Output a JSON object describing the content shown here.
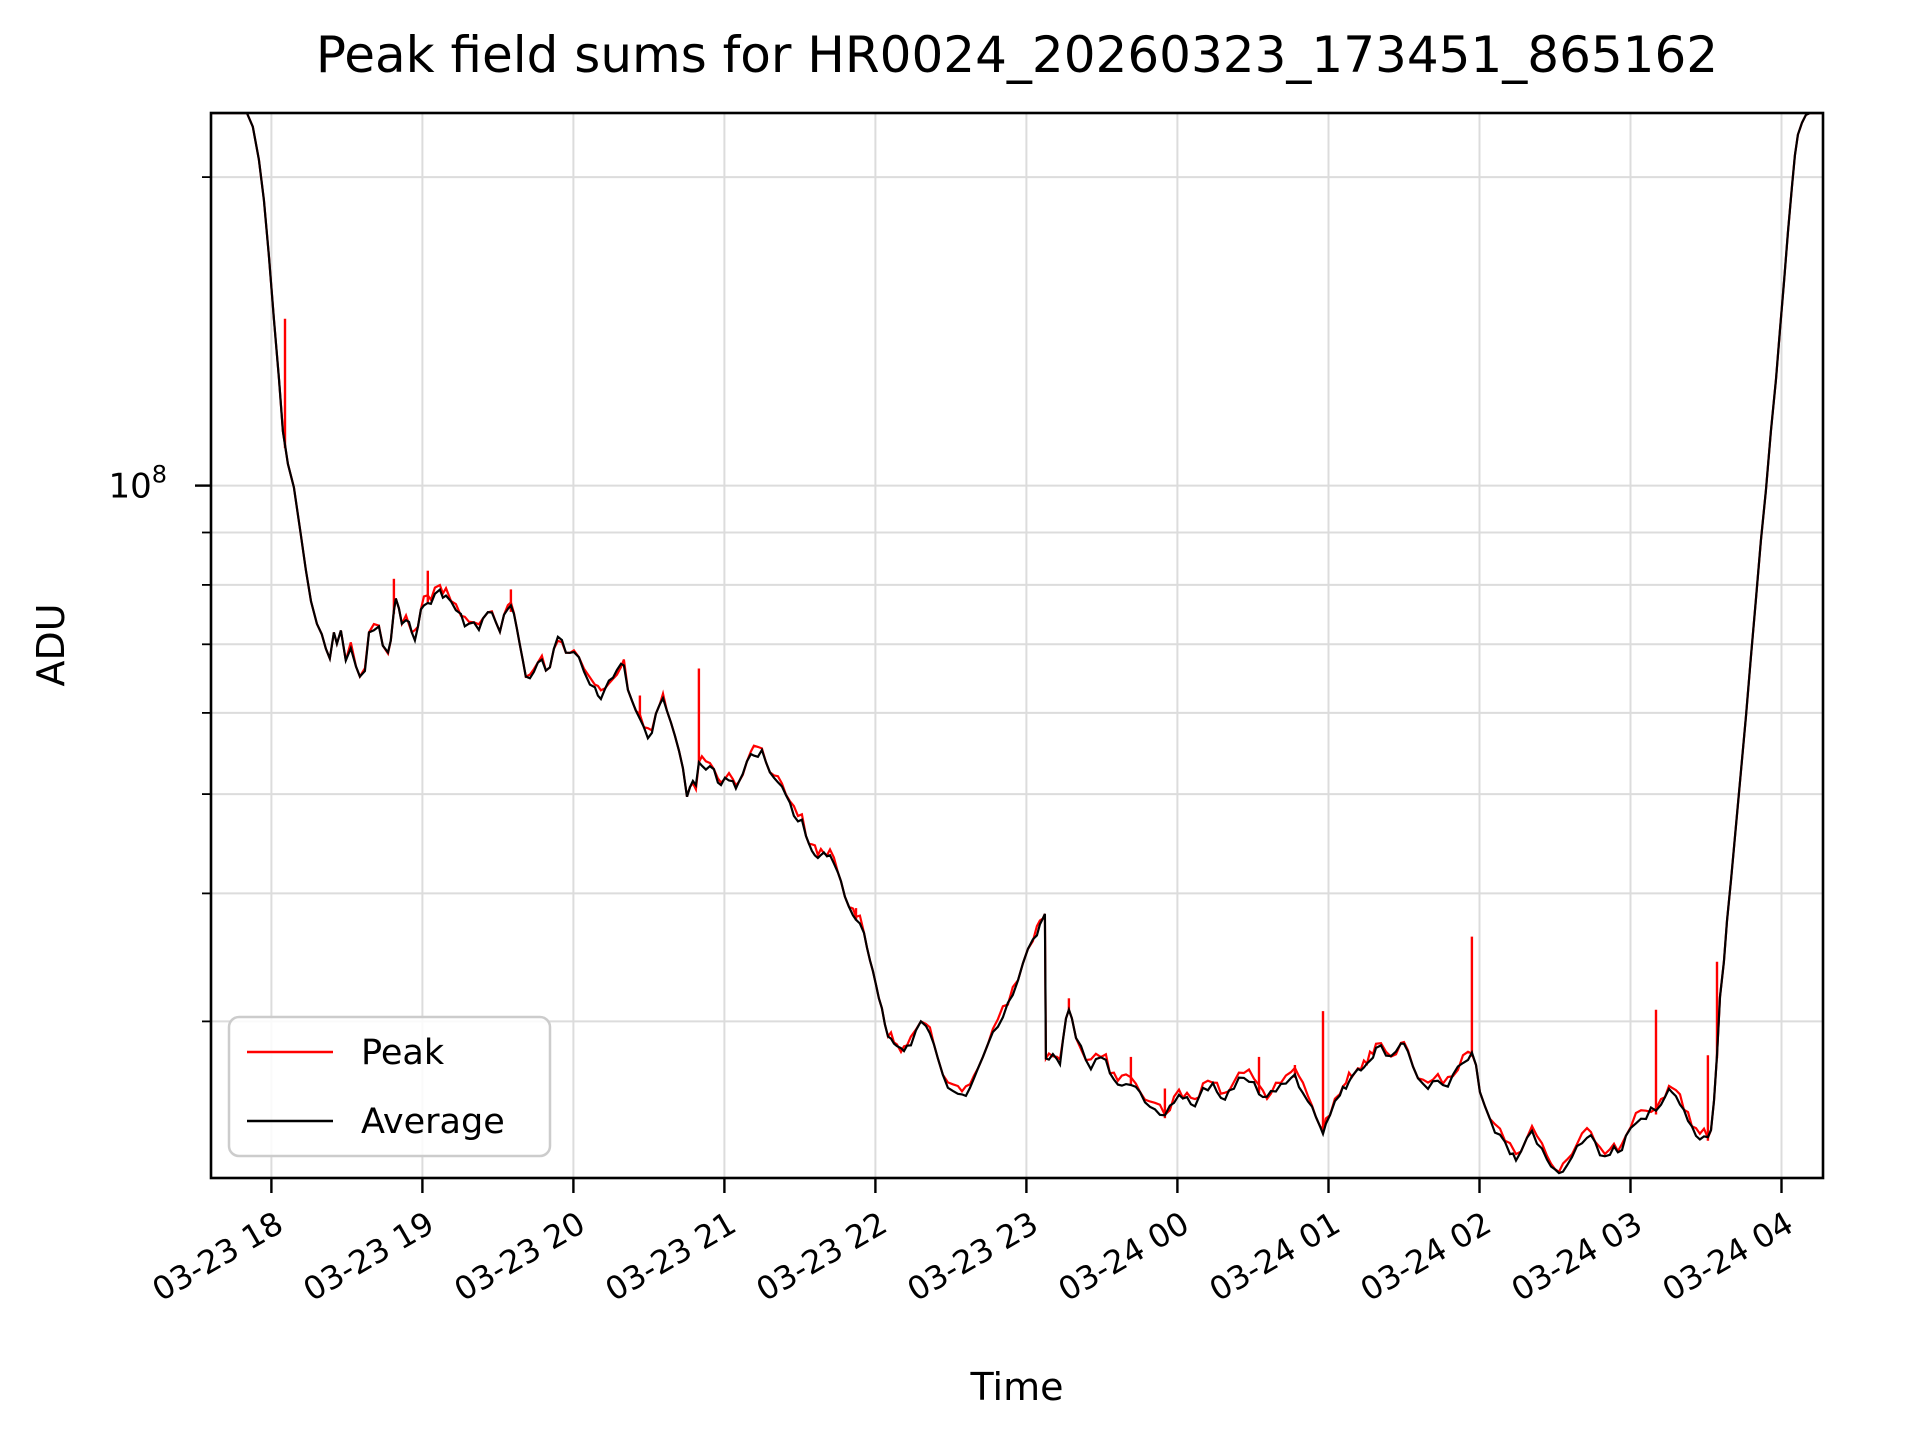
{
  "chart_data": {
    "type": "line",
    "title": "Peak field sums for HR0024_20260323_173451_865162",
    "xlabel": "Time",
    "ylabel": "ADU",
    "y_scale": "log",
    "grid": true,
    "xlim_hours": [
      17.6,
      28.275
    ],
    "ylim": [
      21100000,
      231000000
    ],
    "y_major_tick": {
      "value": 100000000,
      "mantissa": "10",
      "exponent": "8"
    },
    "y_minor_gridlines": [
      30000000,
      40000000,
      50000000,
      60000000,
      70000000,
      80000000,
      90000000,
      200000000
    ],
    "x_ticks": [
      {
        "t": 18,
        "label": "03-23 18"
      },
      {
        "t": 19,
        "label": "03-23 19"
      },
      {
        "t": 20,
        "label": "03-23 20"
      },
      {
        "t": 21,
        "label": "03-23 21"
      },
      {
        "t": 22,
        "label": "03-23 22"
      },
      {
        "t": 23,
        "label": "03-23 23"
      },
      {
        "t": 24,
        "label": "03-24 00"
      },
      {
        "t": 25,
        "label": "03-24 01"
      },
      {
        "t": 26,
        "label": "03-24 02"
      },
      {
        "t": 27,
        "label": "03-24 03"
      },
      {
        "t": 28,
        "label": "03-24 04"
      }
    ],
    "legend": {
      "position": "lower left",
      "entries": [
        {
          "label": "Peak",
          "color": "#ff0000"
        },
        {
          "label": "Average",
          "color": "#000000"
        }
      ]
    },
    "colors": {
      "peak": "#ff0000",
      "average": "#000000",
      "grid": "#dcdcdc",
      "spine": "#000000",
      "legend_border": "#cccccc"
    },
    "value_unit": "1e6 ADU",
    "average_points": [
      [
        17.599,
        231
      ],
      [
        17.838,
        231
      ],
      [
        17.877,
        224
      ],
      [
        17.917,
        208
      ],
      [
        17.95,
        190
      ],
      [
        17.983,
        168
      ],
      [
        18.017,
        145
      ],
      [
        18.05,
        127
      ],
      [
        18.076,
        113
      ],
      [
        18.109,
        105
      ],
      [
        18.149,
        99.6
      ],
      [
        18.195,
        89.6
      ],
      [
        18.228,
        82.8
      ],
      [
        18.262,
        77.1
      ],
      [
        18.301,
        73.3
      ],
      [
        18.334,
        71.6
      ],
      [
        18.361,
        69.3
      ],
      [
        18.387,
        67.8
      ],
      [
        18.414,
        71.9
      ],
      [
        18.434,
        70.1
      ],
      [
        18.46,
        72.2
      ],
      [
        18.493,
        67.5
      ],
      [
        18.526,
        69
      ],
      [
        18.56,
        66.6
      ],
      [
        18.586,
        65.1
      ],
      [
        18.619,
        66.3
      ],
      [
        18.646,
        71.9
      ],
      [
        18.679,
        72.8
      ],
      [
        18.712,
        72.2
      ],
      [
        18.738,
        69.8
      ],
      [
        18.772,
        68.2
      ],
      [
        18.791,
        70.6
      ],
      [
        18.811,
        75.5
      ],
      [
        18.824,
        77.6
      ],
      [
        18.844,
        75.9
      ],
      [
        18.864,
        73.3
      ],
      [
        18.891,
        73.8
      ],
      [
        18.911,
        73
      ],
      [
        18.93,
        71.9
      ],
      [
        18.95,
        70.9
      ],
      [
        18.97,
        72.8
      ],
      [
        18.99,
        75.7
      ],
      [
        19.01,
        76.7
      ],
      [
        19.036,
        77.4
      ],
      [
        19.056,
        77.4
      ],
      [
        19.083,
        78.4
      ],
      [
        19.116,
        78.6
      ],
      [
        19.136,
        78.1
      ],
      [
        19.156,
        78.8
      ],
      [
        19.189,
        76.9
      ],
      [
        19.222,
        75.5
      ],
      [
        19.255,
        74.3
      ],
      [
        19.281,
        73.5
      ],
      [
        19.308,
        72.7
      ],
      [
        19.341,
        73.6
      ],
      [
        19.374,
        72.7
      ],
      [
        19.401,
        74.2
      ],
      [
        19.434,
        75
      ],
      [
        19.46,
        75.3
      ],
      [
        19.487,
        73.5
      ],
      [
        19.513,
        72
      ],
      [
        19.54,
        74.8
      ],
      [
        19.566,
        75.9
      ],
      [
        19.586,
        75.8
      ],
      [
        19.606,
        74.8
      ],
      [
        19.626,
        72.5
      ],
      [
        19.646,
        69.8
      ],
      [
        19.666,
        67.4
      ],
      [
        19.685,
        65.1
      ],
      [
        19.712,
        64.4
      ],
      [
        19.738,
        65.5
      ],
      [
        19.765,
        67.2
      ],
      [
        19.791,
        67.8
      ],
      [
        19.818,
        66
      ],
      [
        19.844,
        66.3
      ],
      [
        19.871,
        69.3
      ],
      [
        19.897,
        70.6
      ],
      [
        19.924,
        70.1
      ],
      [
        19.95,
        68.7
      ],
      [
        19.977,
        68.1
      ],
      [
        20.003,
        68.6
      ],
      [
        20.036,
        67.5
      ],
      [
        20.07,
        66.2
      ],
      [
        20.109,
        64.4
      ],
      [
        20.142,
        63.1
      ],
      [
        20.182,
        62.1
      ],
      [
        20.209,
        63.1
      ],
      [
        20.235,
        64.1
      ],
      [
        20.262,
        64.7
      ],
      [
        20.288,
        65.5
      ],
      [
        20.315,
        66.4
      ],
      [
        20.334,
        66.6
      ],
      [
        20.361,
        63.2
      ],
      [
        20.387,
        61.7
      ],
      [
        20.414,
        60.3
      ],
      [
        20.44,
        59.6
      ],
      [
        20.467,
        58.1
      ],
      [
        20.493,
        57.1
      ],
      [
        20.52,
        57.5
      ],
      [
        20.546,
        59.9
      ],
      [
        20.573,
        61.2
      ],
      [
        20.593,
        62.1
      ],
      [
        20.619,
        60.3
      ],
      [
        20.646,
        58.7
      ],
      [
        20.672,
        57
      ],
      [
        20.699,
        55.1
      ],
      [
        20.725,
        53
      ],
      [
        20.752,
        49.7
      ],
      [
        20.772,
        50.8
      ],
      [
        20.791,
        51.2
      ],
      [
        20.811,
        50.6
      ],
      [
        20.831,
        53.7
      ],
      [
        20.851,
        53.4
      ],
      [
        20.877,
        53.2
      ],
      [
        20.904,
        52.9
      ],
      [
        20.93,
        52.4
      ],
      [
        20.957,
        51.7
      ],
      [
        20.977,
        51.3
      ],
      [
        21.003,
        51.5
      ],
      [
        21.03,
        52
      ],
      [
        21.056,
        51.2
      ],
      [
        21.076,
        50.5
      ],
      [
        21.096,
        51.4
      ],
      [
        21.122,
        52.3
      ],
      [
        21.149,
        53.8
      ],
      [
        21.175,
        54.5
      ],
      [
        21.195,
        55
      ],
      [
        21.222,
        54.8
      ],
      [
        21.248,
        54.8
      ],
      [
        21.275,
        53.7
      ],
      [
        21.301,
        52.5
      ],
      [
        21.328,
        52
      ],
      [
        21.354,
        51.2
      ],
      [
        21.381,
        50.4
      ],
      [
        21.407,
        49.6
      ],
      [
        21.434,
        48.7
      ],
      [
        21.46,
        48
      ],
      [
        21.487,
        47.4
      ],
      [
        21.513,
        46.9
      ],
      [
        21.54,
        45.5
      ],
      [
        21.56,
        44.7
      ],
      [
        21.579,
        44.4
      ],
      [
        21.599,
        43.9
      ],
      [
        21.619,
        43.3
      ],
      [
        21.639,
        43.9
      ],
      [
        21.659,
        43.7
      ],
      [
        21.679,
        43.5
      ],
      [
        21.699,
        43.4
      ],
      [
        21.725,
        43
      ],
      [
        21.752,
        41.9
      ],
      [
        21.772,
        41.1
      ],
      [
        21.798,
        39.7
      ],
      [
        21.825,
        38.8
      ],
      [
        21.851,
        38.2
      ],
      [
        21.871,
        37.9
      ],
      [
        21.897,
        37.4
      ],
      [
        21.924,
        36.6
      ],
      [
        21.944,
        35.4
      ],
      [
        21.964,
        34.4
      ],
      [
        21.983,
        33.6
      ],
      [
        22.003,
        32.6
      ],
      [
        22.023,
        31.6
      ],
      [
        22.043,
        30.9
      ],
      [
        22.063,
        29.8
      ],
      [
        22.083,
        29
      ],
      [
        22.103,
        28.7
      ],
      [
        22.123,
        28.4
      ],
      [
        22.142,
        28.2
      ],
      [
        22.169,
        28
      ],
      [
        22.189,
        28.2
      ],
      [
        22.209,
        28.4
      ],
      [
        22.235,
        28.7
      ],
      [
        22.268,
        29.2
      ],
      [
        22.301,
        30
      ],
      [
        22.334,
        29.6
      ],
      [
        22.361,
        29.2
      ],
      [
        22.387,
        28.5
      ],
      [
        22.414,
        27.6
      ],
      [
        22.447,
        26.6
      ],
      [
        22.48,
        26
      ],
      [
        22.513,
        25.7
      ],
      [
        22.546,
        25.5
      ],
      [
        22.573,
        25.4
      ],
      [
        22.599,
        25.5
      ],
      [
        22.626,
        25.8
      ],
      [
        22.652,
        26.3
      ],
      [
        22.679,
        27
      ],
      [
        22.712,
        27.7
      ],
      [
        22.745,
        28.5
      ],
      [
        22.778,
        29.1
      ],
      [
        22.811,
        29.8
      ],
      [
        22.844,
        30.5
      ],
      [
        22.877,
        31.2
      ],
      [
        22.91,
        31.9
      ],
      [
        22.944,
        32.9
      ],
      [
        22.977,
        34.2
      ],
      [
        23.01,
        35.3
      ],
      [
        23.043,
        36
      ],
      [
        23.069,
        36.5
      ],
      [
        23.089,
        37
      ],
      [
        23.109,
        37.8
      ],
      [
        23.122,
        38.2
      ],
      [
        23.129,
        27.6
      ],
      [
        23.149,
        27.4
      ],
      [
        23.175,
        27.7
      ],
      [
        23.202,
        27.5
      ],
      [
        23.222,
        27.2
      ],
      [
        23.242,
        28.8
      ],
      [
        23.262,
        30.2
      ],
      [
        23.281,
        30.8
      ],
      [
        23.301,
        30.2
      ],
      [
        23.328,
        28.9
      ],
      [
        23.361,
        28.2
      ],
      [
        23.394,
        27.5
      ],
      [
        23.427,
        27.2
      ],
      [
        23.46,
        27.5
      ],
      [
        23.493,
        27.7
      ],
      [
        23.526,
        27.5
      ],
      [
        23.553,
        26.7
      ],
      [
        23.579,
        26.2
      ],
      [
        23.606,
        25.9
      ],
      [
        23.632,
        26.1
      ],
      [
        23.659,
        26.3
      ],
      [
        23.692,
        26.2
      ],
      [
        23.725,
        26
      ],
      [
        23.752,
        25.5
      ],
      [
        23.785,
        25.1
      ],
      [
        23.818,
        24.8
      ],
      [
        23.851,
        24.6
      ],
      [
        23.884,
        24.4
      ],
      [
        23.917,
        24.3
      ],
      [
        23.95,
        24.6
      ],
      [
        23.977,
        24.9
      ],
      [
        24.01,
        25.3
      ],
      [
        24.036,
        25.3
      ],
      [
        24.063,
        25.1
      ],
      [
        24.089,
        24.8
      ],
      [
        24.116,
        24.8
      ],
      [
        24.142,
        25.3
      ],
      [
        24.169,
        25.6
      ],
      [
        24.202,
        25.9
      ],
      [
        24.235,
        25.9
      ],
      [
        24.262,
        25.7
      ],
      [
        24.288,
        25.4
      ],
      [
        24.315,
        25.2
      ],
      [
        24.341,
        25.6
      ],
      [
        24.374,
        25.9
      ],
      [
        24.407,
        26.3
      ],
      [
        24.44,
        26.6
      ],
      [
        24.474,
        26.4
      ],
      [
        24.507,
        26
      ],
      [
        24.54,
        25.7
      ],
      [
        24.566,
        25.4
      ],
      [
        24.593,
        25.2
      ],
      [
        24.619,
        25.5
      ],
      [
        24.652,
        25.8
      ],
      [
        24.685,
        26
      ],
      [
        24.718,
        26.3
      ],
      [
        24.752,
        26.5
      ],
      [
        24.778,
        26.6
      ],
      [
        24.805,
        26.1
      ],
      [
        24.831,
        25.7
      ],
      [
        24.864,
        25.2
      ],
      [
        24.891,
        24.7
      ],
      [
        24.917,
        24.2
      ],
      [
        24.944,
        23.7
      ],
      [
        24.964,
        23.5
      ],
      [
        24.983,
        23.7
      ],
      [
        25.01,
        24.3
      ],
      [
        25.043,
        24.9
      ],
      [
        25.076,
        25.5
      ],
      [
        25.116,
        26
      ],
      [
        25.156,
        26.5
      ],
      [
        25.195,
        26.9
      ],
      [
        25.235,
        27.1
      ],
      [
        25.275,
        27.5
      ],
      [
        25.315,
        28
      ],
      [
        25.348,
        28.3
      ],
      [
        25.381,
        28
      ],
      [
        25.414,
        27.5
      ],
      [
        25.447,
        27.8
      ],
      [
        25.48,
        28.3
      ],
      [
        25.5,
        28.4
      ],
      [
        25.526,
        28
      ],
      [
        25.56,
        27.1
      ],
      [
        25.593,
        26.4
      ],
      [
        25.626,
        26
      ],
      [
        25.659,
        25.9
      ],
      [
        25.692,
        26.1
      ],
      [
        25.725,
        26.3
      ],
      [
        25.758,
        25.9
      ],
      [
        25.791,
        26.1
      ],
      [
        25.824,
        26.5
      ],
      [
        25.857,
        26.9
      ],
      [
        25.891,
        27.5
      ],
      [
        25.924,
        27.7
      ],
      [
        25.95,
        27.9
      ],
      [
        25.977,
        27.2
      ],
      [
        26.003,
        25.6
      ],
      [
        26.036,
        24.8
      ],
      [
        26.069,
        24.1
      ],
      [
        26.103,
        23.5
      ],
      [
        26.136,
        23.2
      ],
      [
        26.169,
        22.8
      ],
      [
        26.202,
        22.4
      ],
      [
        26.242,
        22.1
      ],
      [
        26.275,
        22.4
      ],
      [
        26.315,
        23.1
      ],
      [
        26.348,
        23.3
      ],
      [
        26.381,
        22.9
      ],
      [
        26.414,
        22.4
      ],
      [
        26.447,
        22
      ],
      [
        26.474,
        21.7
      ],
      [
        26.5,
        21.4
      ],
      [
        26.527,
        21.3
      ],
      [
        26.553,
        21.4
      ],
      [
        26.58,
        21.8
      ],
      [
        26.613,
        22.3
      ],
      [
        26.646,
        22.6
      ],
      [
        26.679,
        23
      ],
      [
        26.712,
        23.3
      ],
      [
        26.738,
        23.4
      ],
      [
        26.765,
        22.9
      ],
      [
        26.798,
        22.4
      ],
      [
        26.831,
        22.2
      ],
      [
        26.864,
        22.4
      ],
      [
        26.891,
        22.6
      ],
      [
        26.917,
        22.4
      ],
      [
        26.944,
        22.5
      ],
      [
        26.97,
        23.2
      ],
      [
        27.003,
        23.7
      ],
      [
        27.036,
        24
      ],
      [
        27.07,
        24.2
      ],
      [
        27.103,
        24.3
      ],
      [
        27.136,
        24.5
      ],
      [
        27.169,
        24.5
      ],
      [
        27.202,
        24.8
      ],
      [
        27.228,
        25.3
      ],
      [
        27.255,
        25.8
      ],
      [
        27.275,
        25.7
      ],
      [
        27.301,
        25.5
      ],
      [
        27.328,
        25.1
      ],
      [
        27.354,
        24.6
      ],
      [
        27.381,
        24.2
      ],
      [
        27.407,
        23.7
      ],
      [
        27.434,
        23.4
      ],
      [
        27.46,
        23.2
      ],
      [
        27.487,
        23.1
      ],
      [
        27.513,
        23.1
      ],
      [
        27.533,
        23.5
      ],
      [
        27.553,
        25.1
      ],
      [
        27.573,
        27.8
      ],
      [
        27.593,
        31.7
      ],
      [
        27.619,
        34.3
      ],
      [
        27.639,
        37.6
      ],
      [
        27.666,
        41.2
      ],
      [
        27.699,
        46.6
      ],
      [
        27.732,
        52.7
      ],
      [
        27.765,
        59.6
      ],
      [
        27.798,
        68.2
      ],
      [
        27.831,
        77.6
      ],
      [
        27.864,
        88.4
      ],
      [
        27.897,
        98.9
      ],
      [
        27.93,
        113
      ],
      [
        27.964,
        127
      ],
      [
        27.99,
        142
      ],
      [
        28.017,
        158
      ],
      [
        28.043,
        177
      ],
      [
        28.07,
        196
      ],
      [
        28.089,
        210
      ],
      [
        28.109,
        220
      ],
      [
        28.136,
        226
      ],
      [
        28.162,
        230
      ],
      [
        28.189,
        231
      ],
      [
        28.275,
        231
      ]
    ],
    "peak_spikes": [
      [
        18.09,
        145.5
      ],
      [
        18.811,
        81.1
      ],
      [
        19.036,
        82.6
      ],
      [
        19.586,
        79.2
      ],
      [
        20.44,
        62.4
      ],
      [
        20.831,
        66.3
      ],
      [
        21.871,
        38.7
      ],
      [
        23.281,
        31.6
      ],
      [
        23.692,
        27.7
      ],
      [
        23.917,
        25.8
      ],
      [
        24.54,
        27.7
      ],
      [
        24.778,
        27.2
      ],
      [
        24.964,
        30.7
      ],
      [
        25.95,
        36.3
      ],
      [
        27.169,
        30.8
      ],
      [
        27.513,
        27.8
      ],
      [
        27.573,
        34.3
      ]
    ]
  }
}
